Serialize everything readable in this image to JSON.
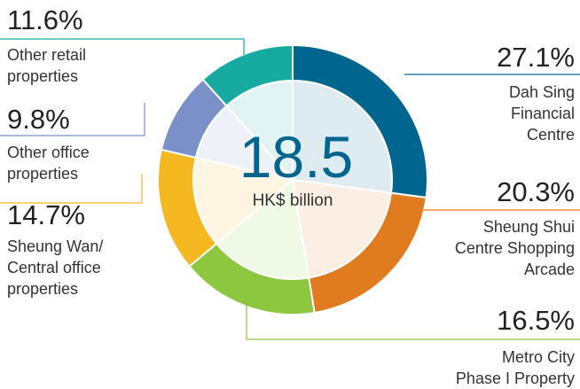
{
  "chart_data": {
    "type": "donut",
    "center_value": "18.5",
    "center_label": "HK$ billion",
    "categories": [
      "Dah Sing\nFinancial\nCentre",
      "Sheung Shui\nCentre Shopping\nArcade",
      "Metro City\nPhase I Property",
      "Sheung Wan/\nCentral office\nproperties",
      "Other office\nproperties",
      "Other retail\nproperties"
    ],
    "values": [
      27.1,
      20.3,
      16.5,
      14.7,
      9.8,
      11.6
    ],
    "value_labels": [
      "27.1%",
      "20.3%",
      "16.5%",
      "14.7%",
      "9.8%",
      "11.6%"
    ],
    "colors": [
      "#00668f",
      "#e07b1f",
      "#8dc63f",
      "#f5b820",
      "#7b8fc9",
      "#16aaa0"
    ]
  }
}
